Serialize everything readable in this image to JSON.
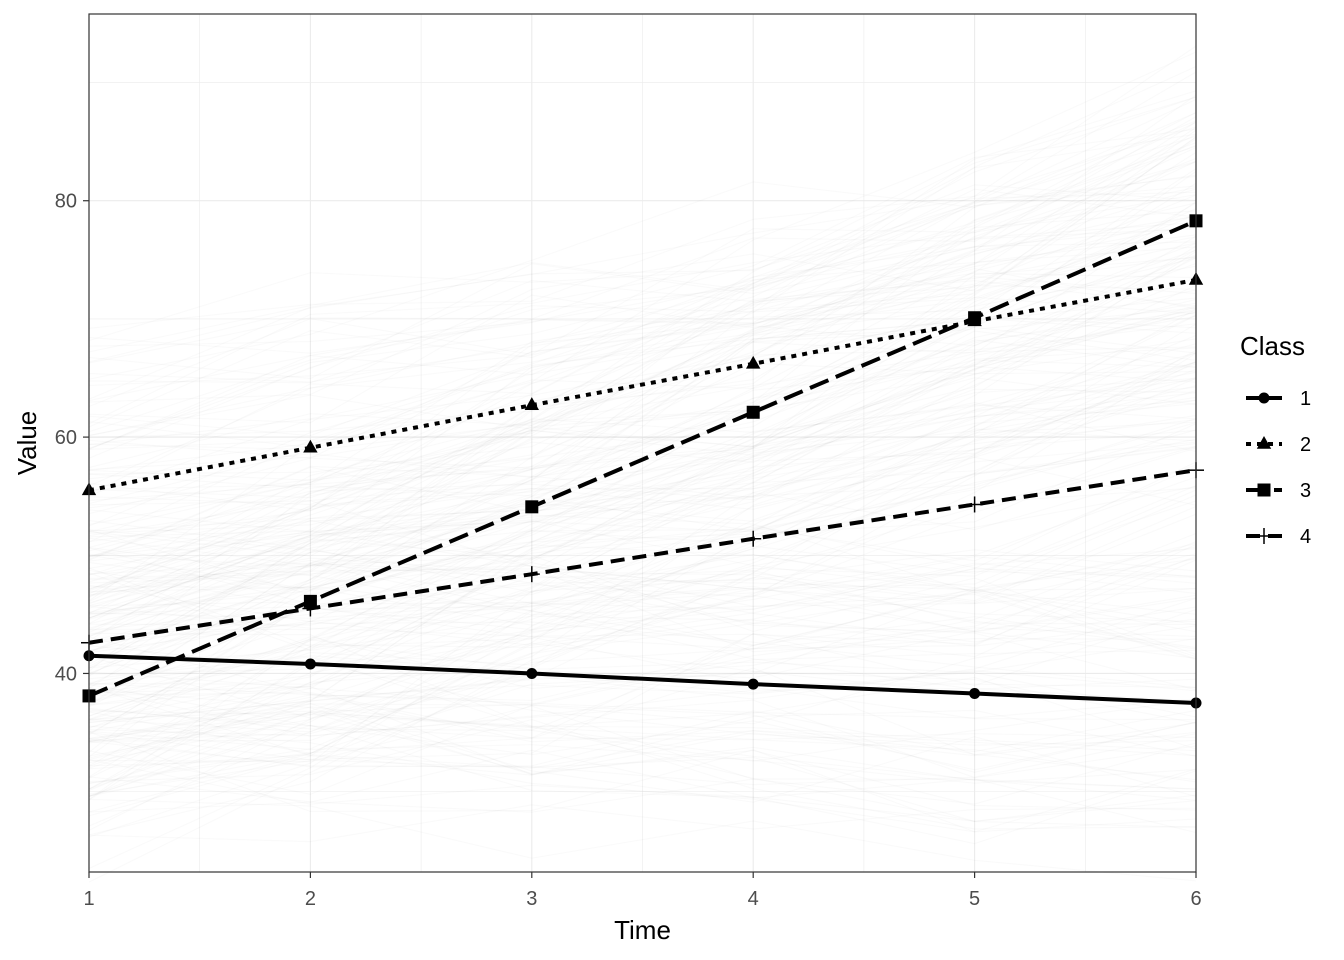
{
  "chart_data": {
    "type": "line",
    "xlabel": "Time",
    "ylabel": "Value",
    "x": [
      1,
      2,
      3,
      4,
      5,
      6
    ],
    "xlim": [
      1,
      6
    ],
    "ylim": [
      23.2,
      95.8
    ],
    "x_ticks": [
      1,
      2,
      3,
      4,
      5,
      6
    ],
    "y_ticks": [
      40,
      60,
      80
    ],
    "grid": true,
    "legend": {
      "title": "Class",
      "position": "right"
    },
    "series": [
      {
        "name": "1",
        "values": [
          41.5,
          40.8,
          40.0,
          39.1,
          38.3,
          37.5
        ],
        "dash": "solid",
        "marker": "circle"
      },
      {
        "name": "2",
        "values": [
          55.5,
          59.1,
          62.7,
          66.2,
          69.8,
          73.3
        ],
        "dash": "dotted",
        "marker": "triangle"
      },
      {
        "name": "3",
        "values": [
          38.1,
          46.1,
          54.1,
          62.1,
          70.1,
          78.3
        ],
        "dash": "longdash",
        "marker": "square"
      },
      {
        "name": "4",
        "values": [
          42.6,
          45.5,
          48.4,
          51.4,
          54.3,
          57.2
        ],
        "dash": "dashed",
        "marker": "plus"
      }
    ],
    "background_trajectories": "many faint grey individual trajectories"
  }
}
